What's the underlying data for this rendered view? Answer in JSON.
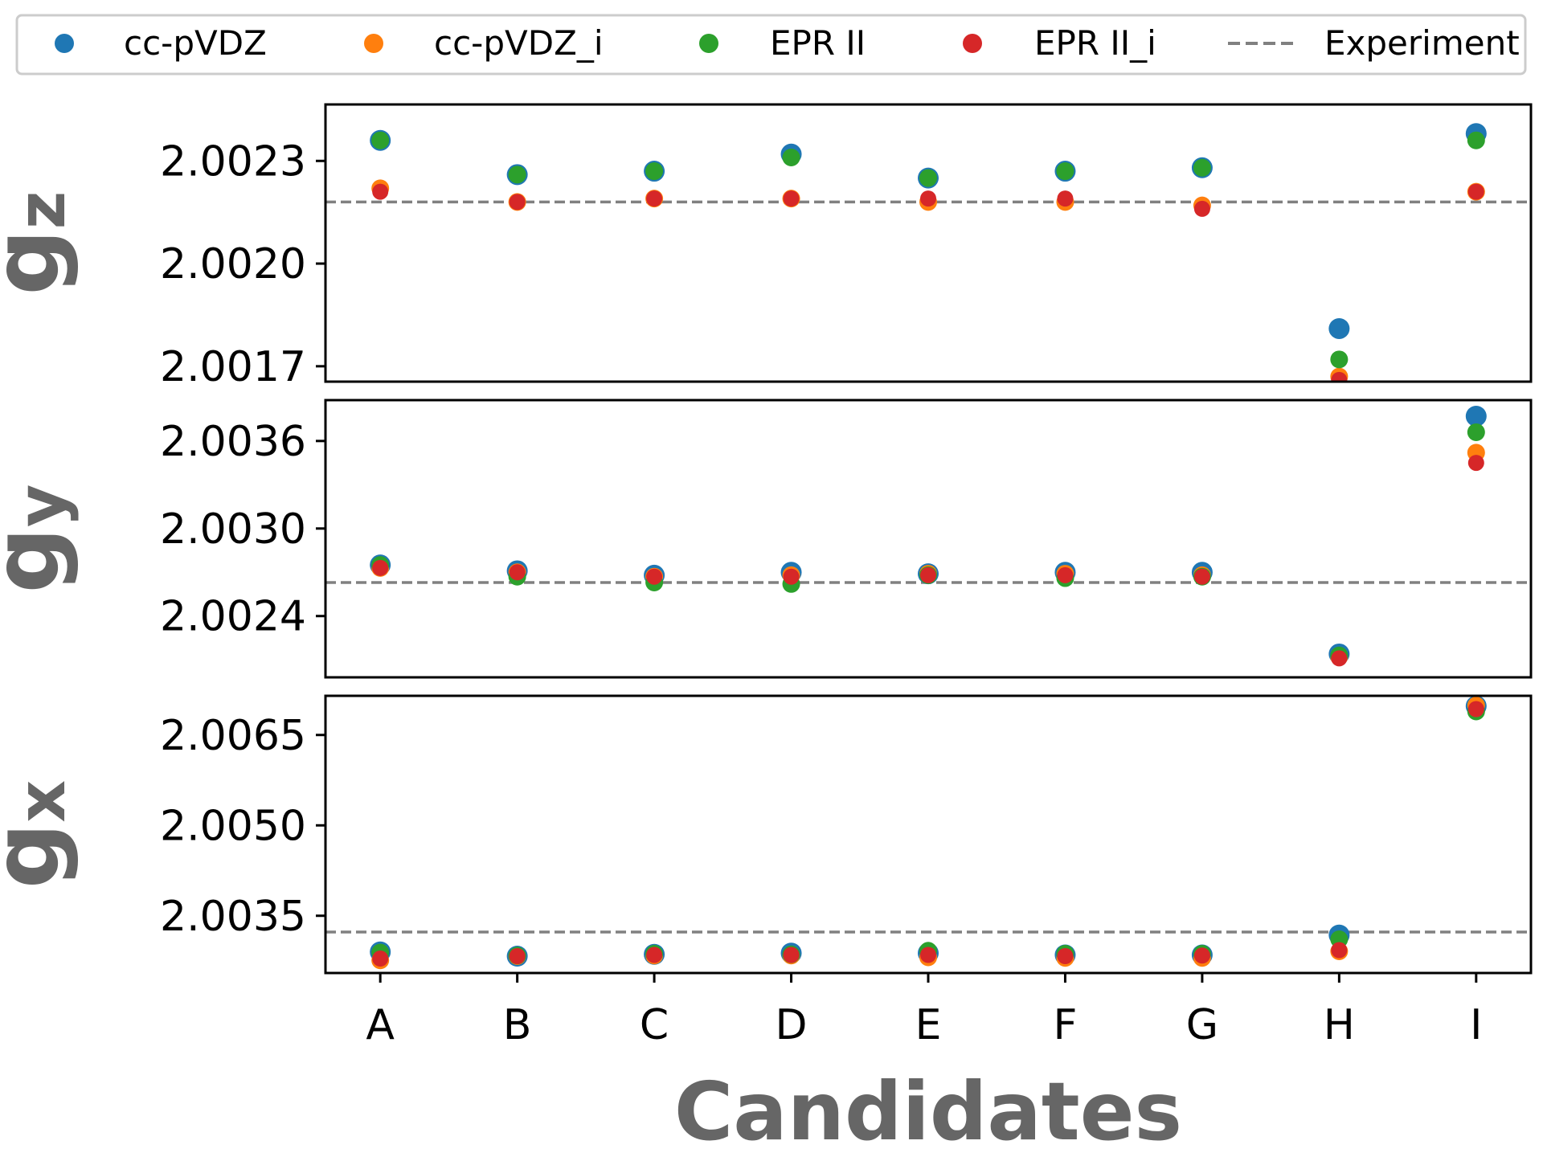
{
  "chart_data": {
    "type": "scatter",
    "xlabel": "Candidates",
    "categories": [
      "A",
      "B",
      "C",
      "D",
      "E",
      "F",
      "G",
      "H",
      "I"
    ],
    "legend": {
      "placement": "top",
      "entries": [
        {
          "label": "cc-pVDZ",
          "color": "#1f77b4",
          "marker": "circle"
        },
        {
          "label": "cc-pVDZ_i",
          "color": "#ff7f0e",
          "marker": "circle"
        },
        {
          "label": "EPR II",
          "color": "#2ca02c",
          "marker": "circle"
        },
        {
          "label": "EPR II_i",
          "color": "#d62728",
          "marker": "circle"
        },
        {
          "label": "Experiment",
          "color": "#808080",
          "marker": "dashed-line"
        }
      ]
    },
    "panels": [
      {
        "ylabel_main": "g",
        "ylabel_sub": "z",
        "ylim": [
          2.001655,
          2.002465
        ],
        "yticks": [
          {
            "value": 2.0017,
            "label": "2.0017"
          },
          {
            "value": 2.002,
            "label": "2.0020"
          },
          {
            "value": 2.0023,
            "label": "2.0023"
          }
        ],
        "experiment": 2.00218,
        "series": [
          {
            "name": "cc-pVDZ",
            "values": [
              2.00236,
              2.00226,
              2.00227,
              2.00232,
              2.00225,
              2.00227,
              2.00228,
              2.00181,
              2.00238
            ]
          },
          {
            "name": "cc-pVDZ_i",
            "values": [
              2.00222,
              2.00218,
              2.00219,
              2.00219,
              2.00218,
              2.00218,
              2.00217,
              2.00167,
              2.00221
            ]
          },
          {
            "name": "EPR II",
            "values": [
              2.00236,
              2.00226,
              2.00227,
              2.00231,
              2.00225,
              2.00227,
              2.00228,
              2.00172,
              2.00236
            ]
          },
          {
            "name": "EPR II_i",
            "values": [
              2.00221,
              2.00218,
              2.00219,
              2.00219,
              2.00219,
              2.00219,
              2.00216,
              2.00166,
              2.00221
            ]
          }
        ]
      },
      {
        "ylabel_main": "g",
        "ylabel_sub": "y",
        "ylim": [
          2.00198,
          2.00388
        ],
        "yticks": [
          {
            "value": 2.0024,
            "label": "2.0024"
          },
          {
            "value": 2.003,
            "label": "2.0030"
          },
          {
            "value": 2.0036,
            "label": "2.0036"
          }
        ],
        "experiment": 2.00263,
        "series": [
          {
            "name": "cc-pVDZ",
            "values": [
              2.00275,
              2.00271,
              2.00268,
              2.0027,
              2.00269,
              2.0027,
              2.0027,
              2.00214,
              2.00377
            ]
          },
          {
            "name": "cc-pVDZ_i",
            "values": [
              2.00273,
              2.0027,
              2.00267,
              2.00268,
              2.00269,
              2.00269,
              2.00268,
              2.00212,
              2.00352
            ]
          },
          {
            "name": "EPR II",
            "values": [
              2.00275,
              2.00267,
              2.00263,
              2.00262,
              2.00268,
              2.00266,
              2.00267,
              2.00213,
              2.00366
            ]
          },
          {
            "name": "EPR II_i",
            "values": [
              2.00273,
              2.0027,
              2.00267,
              2.00267,
              2.00268,
              2.00268,
              2.00267,
              2.00211,
              2.00345
            ]
          }
        ]
      },
      {
        "ylabel_main": "g",
        "ylabel_sub": "x",
        "ylim": [
          2.00255,
          2.00715
        ],
        "yticks": [
          {
            "value": 2.0035,
            "label": "2.0035"
          },
          {
            "value": 2.005,
            "label": "2.0050"
          },
          {
            "value": 2.0065,
            "label": "2.0065"
          }
        ],
        "experiment": 2.00323,
        "series": [
          {
            "name": "cc-pVDZ",
            "values": [
              2.0029,
              2.00283,
              2.00286,
              2.00288,
              2.00288,
              2.00285,
              2.00285,
              2.00318,
              2.00698
            ]
          },
          {
            "name": "cc-pVDZ_i",
            "values": [
              2.00276,
              2.00283,
              2.00284,
              2.00284,
              2.00281,
              2.0028,
              2.0028,
              2.00291,
              2.00699
            ]
          },
          {
            "name": "EPR II",
            "values": [
              2.00289,
              2.00284,
              2.00287,
              2.00286,
              2.00292,
              2.00287,
              2.00287,
              2.00311,
              2.00689
            ]
          },
          {
            "name": "EPR II_i",
            "values": [
              2.00279,
              2.00283,
              2.00285,
              2.00285,
              2.00285,
              2.00283,
              2.00284,
              2.00293,
              2.00693
            ]
          }
        ]
      }
    ]
  }
}
